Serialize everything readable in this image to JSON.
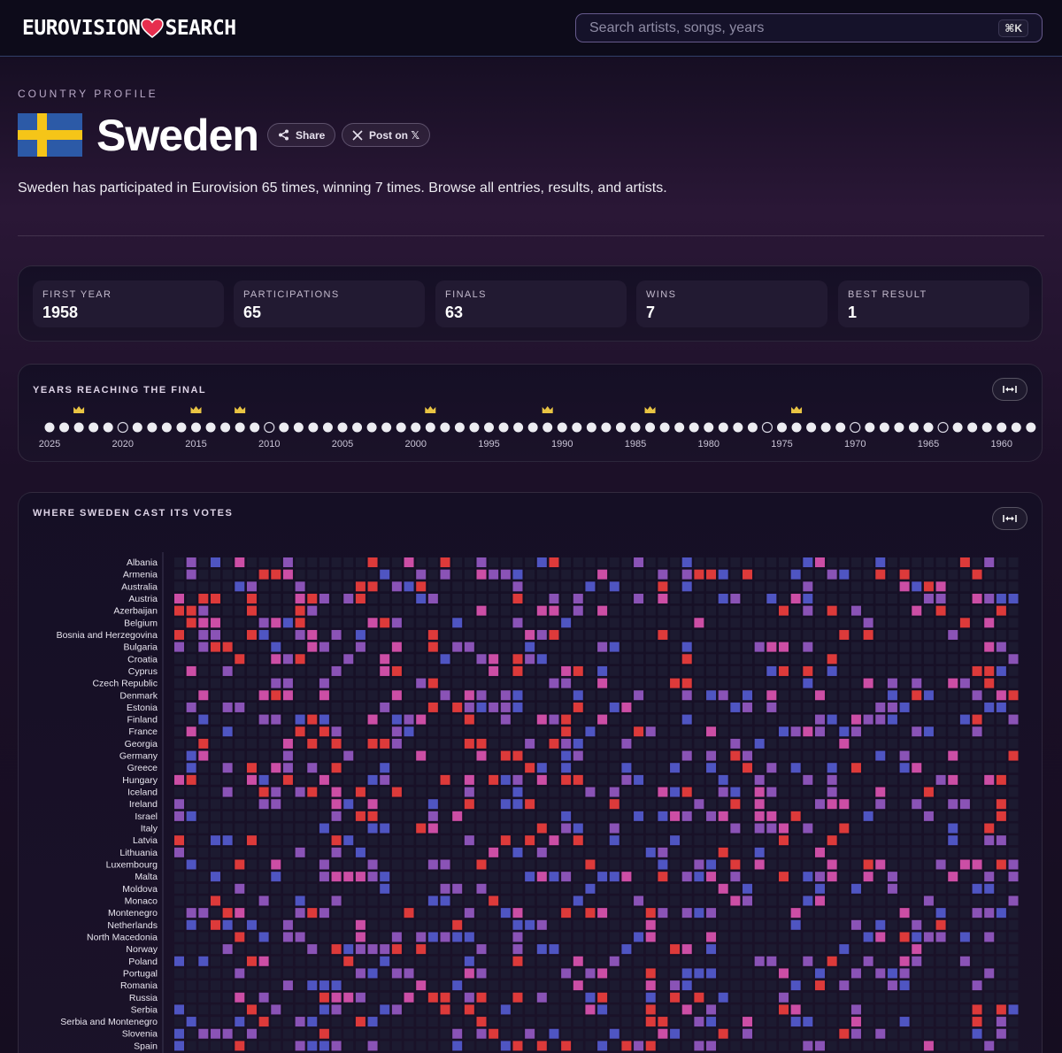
{
  "header": {
    "logo_left": "EUROVISION",
    "logo_right": "SEARCH",
    "search_placeholder": "Search artists, songs, years",
    "shortcut": "⌘K"
  },
  "profile": {
    "eyebrow": "COUNTRY PROFILE",
    "country": "Sweden",
    "share_label": "Share",
    "post_label": "Post on 𝕏",
    "description": "Sweden has participated in Eurovision 65 times, winning 7 times. Browse all entries, results, and artists."
  },
  "stats": [
    {
      "label": "FIRST YEAR",
      "value": "1958"
    },
    {
      "label": "PARTICIPATIONS",
      "value": "65"
    },
    {
      "label": "FINALS",
      "value": "63"
    },
    {
      "label": "WINS",
      "value": "7"
    },
    {
      "label": "BEST RESULT",
      "value": "1"
    }
  ],
  "years": {
    "title": "YEARS REACHING THE FINAL",
    "tick_labels": [
      "2025",
      "2020",
      "2015",
      "2010",
      "2005",
      "2000",
      "1995",
      "1990",
      "1985",
      "1980",
      "1975",
      "1970",
      "1965",
      "1960"
    ],
    "tick_years": [
      2025,
      2020,
      2015,
      2010,
      2005,
      2000,
      1995,
      1990,
      1985,
      1980,
      1975,
      1970,
      1965,
      1960
    ],
    "start_year": 2025,
    "end_year": 1958,
    "win_years": [
      2023,
      2015,
      2012,
      1999,
      1991,
      1984,
      1974
    ],
    "not_final_years": [
      2020,
      2010,
      1976,
      1970,
      1964
    ]
  },
  "votes": {
    "title": "WHERE SWEDEN CAST ITS VOTES",
    "countries": [
      "Albania",
      "Armenia",
      "Australia",
      "Austria",
      "Azerbaijan",
      "Belgium",
      "Bosnia and Herzegovina",
      "Bulgaria",
      "Croatia",
      "Cyprus",
      "Czech Republic",
      "Denmark",
      "Estonia",
      "Finland",
      "France",
      "Georgia",
      "Germany",
      "Greece",
      "Hungary",
      "Iceland",
      "Ireland",
      "Israel",
      "Italy",
      "Latvia",
      "Lithuania",
      "Luxembourg",
      "Malta",
      "Moldova",
      "Monaco",
      "Montenegro",
      "Netherlands",
      "North Macedonia",
      "Norway",
      "Poland",
      "Portugal",
      "Romania",
      "Russia",
      "Serbia",
      "Serbia and Montenegro",
      "Slovenia",
      "Spain"
    ]
  },
  "colors": {
    "low": "#4f55c2",
    "mid": "#8a53b6",
    "pink": "#cc4ea5",
    "high": "#dd3a3a",
    "empty": "#1c1a30",
    "crown": "#e9c443"
  },
  "icons": {
    "heart": "heart-icon",
    "share": "share-icon",
    "x": "x-logo-icon",
    "expand": "expand-horizontal-icon",
    "crown": "crown-icon"
  }
}
